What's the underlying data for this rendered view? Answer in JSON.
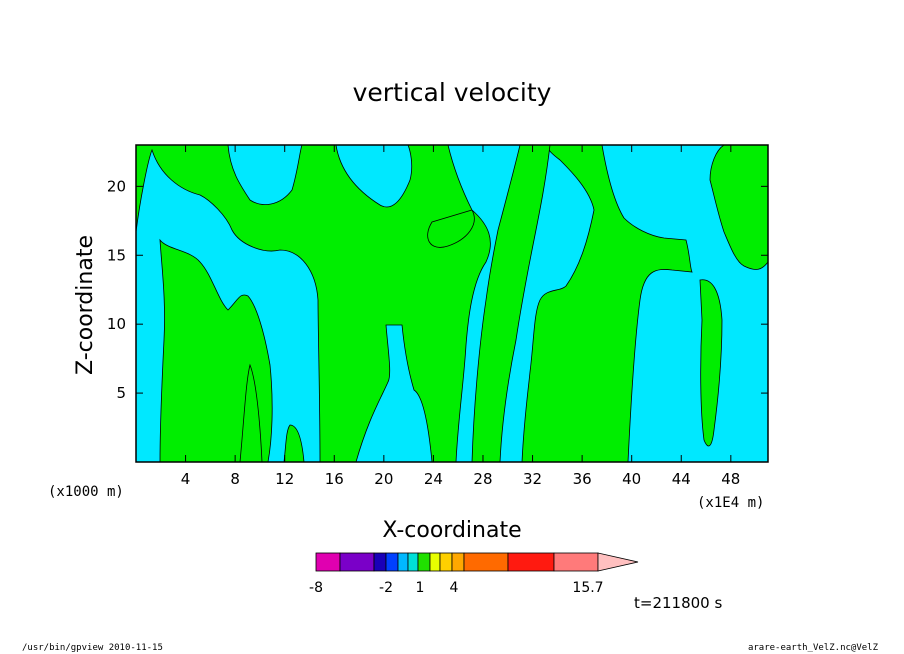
{
  "chart_data": {
    "type": "heatmap",
    "title": "vertical velocity",
    "xlabel": "X-coordinate",
    "ylabel": "Z-coordinate",
    "x_unit": "(x1E4 m)",
    "y_unit": "(x1000 m)",
    "xlim": [
      0,
      51
    ],
    "ylim": [
      0,
      23
    ],
    "x_ticks": [
      4,
      8,
      12,
      16,
      20,
      24,
      28,
      32,
      36,
      40,
      44,
      48
    ],
    "y_ticks": [
      5,
      10,
      15,
      20
    ],
    "colorbar": {
      "colors": [
        "#e000b0",
        "#7a00c8",
        "#1a00b8",
        "#0040ff",
        "#00b8ff",
        "#00e0d8",
        "#20e000",
        "#e8ff00",
        "#ffd000",
        "#ffa800",
        "#ff6a00",
        "#ff1a10",
        "#ff7a7a",
        "#ffc0c0"
      ],
      "tick_labels": [
        "-8",
        "-2",
        "1",
        "4",
        "15.7"
      ]
    },
    "filled_colors": {
      "negative": "#00e8ff",
      "positive": "#00ee00"
    },
    "time_label": "t=211800 s"
  },
  "footer": {
    "left": "/usr/bin/gpview   2010-11-15",
    "right": "arare-earth_VelZ.nc@VelZ"
  }
}
